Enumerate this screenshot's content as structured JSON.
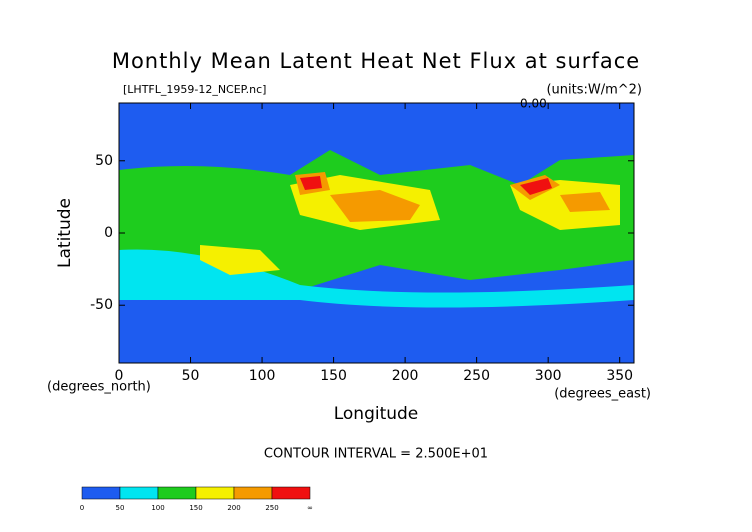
{
  "chart_data": {
    "type": "contour",
    "title": "Monthly Mean Latent Heat Net Flux at surface",
    "subtitle": "[LHTFL_1959-12_NCEP.nc]",
    "units": "(units:W/m^2)",
    "corner_label": "0.00",
    "x_label": "Longitude",
    "y_label": "Latitude",
    "x_unit": "(degrees_east)",
    "y_unit": "(degrees_north)",
    "note": "CONTOUR INTERVAL = 2.500E+01",
    "xlim": [
      0,
      360
    ],
    "ylim": [
      -90,
      90
    ],
    "xticks": [
      0,
      50,
      100,
      150,
      200,
      250,
      300,
      350
    ],
    "yticks": [
      -50,
      0,
      50
    ],
    "colorbar": {
      "levels": [
        0,
        50,
        100,
        150,
        200,
        250
      ],
      "end_label": "∞",
      "colors": [
        "#1e5cf0",
        "#00e5f0",
        "#1ecc1e",
        "#f5f000",
        "#f59a00",
        "#f01010"
      ]
    }
  }
}
